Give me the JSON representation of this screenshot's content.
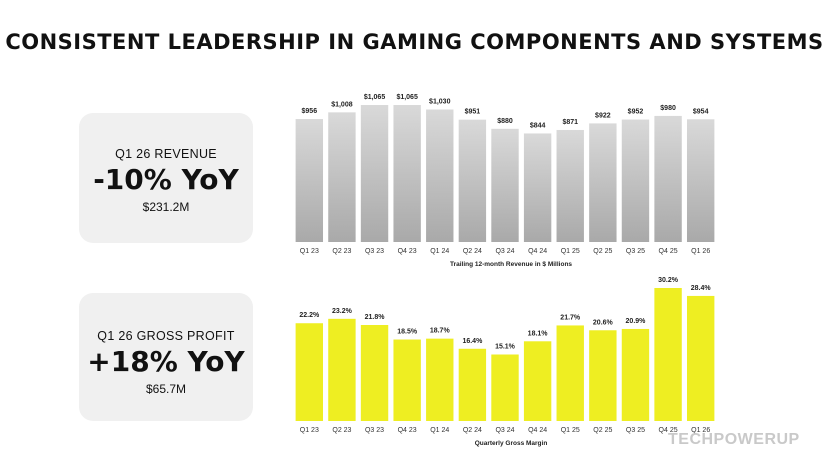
{
  "title": "CONSISTENT LEADERSHIP IN GAMING COMPONENTS AND SYSTEMS",
  "cards": {
    "revenue": {
      "label": "Q1 26 REVENUE",
      "big": "-10% YoY",
      "amount": "$231.2M"
    },
    "profit": {
      "label": "Q1 26 GROSS PROFIT",
      "big": "+18% YoY",
      "amount": "$65.7M"
    }
  },
  "watermark": "TECHPOWERUP",
  "colors": {
    "revenue_bar": "#a9a9a9",
    "revenue_bar_top": "#d9d9d9",
    "profit_bar": "#eeee22"
  },
  "chart_data": [
    {
      "type": "bar",
      "xlabel": "Trailing 12-month Revenue in $ Millions",
      "categories": [
        "Q1 23",
        "Q2 23",
        "Q3 23",
        "Q4 23",
        "Q1 24",
        "Q2 24",
        "Q3 24",
        "Q4 24",
        "Q1 25",
        "Q2 25",
        "Q3 25",
        "Q4 25",
        "Q1 26"
      ],
      "values": [
        956,
        1008,
        1065,
        1065,
        1030,
        951,
        880,
        844,
        871,
        922,
        952,
        980,
        954
      ],
      "data_labels": [
        "$956",
        "$1,008",
        "$1,065",
        "$1,065",
        "$1,030",
        "$951",
        "$880",
        "$844",
        "$871",
        "$922",
        "$952",
        "$980",
        "$954"
      ],
      "ylim": [
        0,
        1065
      ],
      "grid": false
    },
    {
      "type": "bar",
      "xlabel": "Quarterly Gross Margin",
      "categories": [
        "Q1 23",
        "Q2 23",
        "Q3 23",
        "Q4 23",
        "Q1 24",
        "Q2 24",
        "Q3 24",
        "Q4 24",
        "Q1 25",
        "Q2 25",
        "Q3 25",
        "Q4 25",
        "Q1 26"
      ],
      "values": [
        22.2,
        23.2,
        21.8,
        18.5,
        18.7,
        16.4,
        15.1,
        18.1,
        21.7,
        20.6,
        20.9,
        30.2,
        28.4
      ],
      "data_labels": [
        "22.2%",
        "23.2%",
        "21.8%",
        "18.5%",
        "18.7%",
        "16.4%",
        "15.1%",
        "18.1%",
        "21.7%",
        "20.6%",
        "20.9%",
        "30.2%",
        "28.4%"
      ],
      "ylim": [
        0,
        30.2
      ],
      "grid": false
    }
  ]
}
